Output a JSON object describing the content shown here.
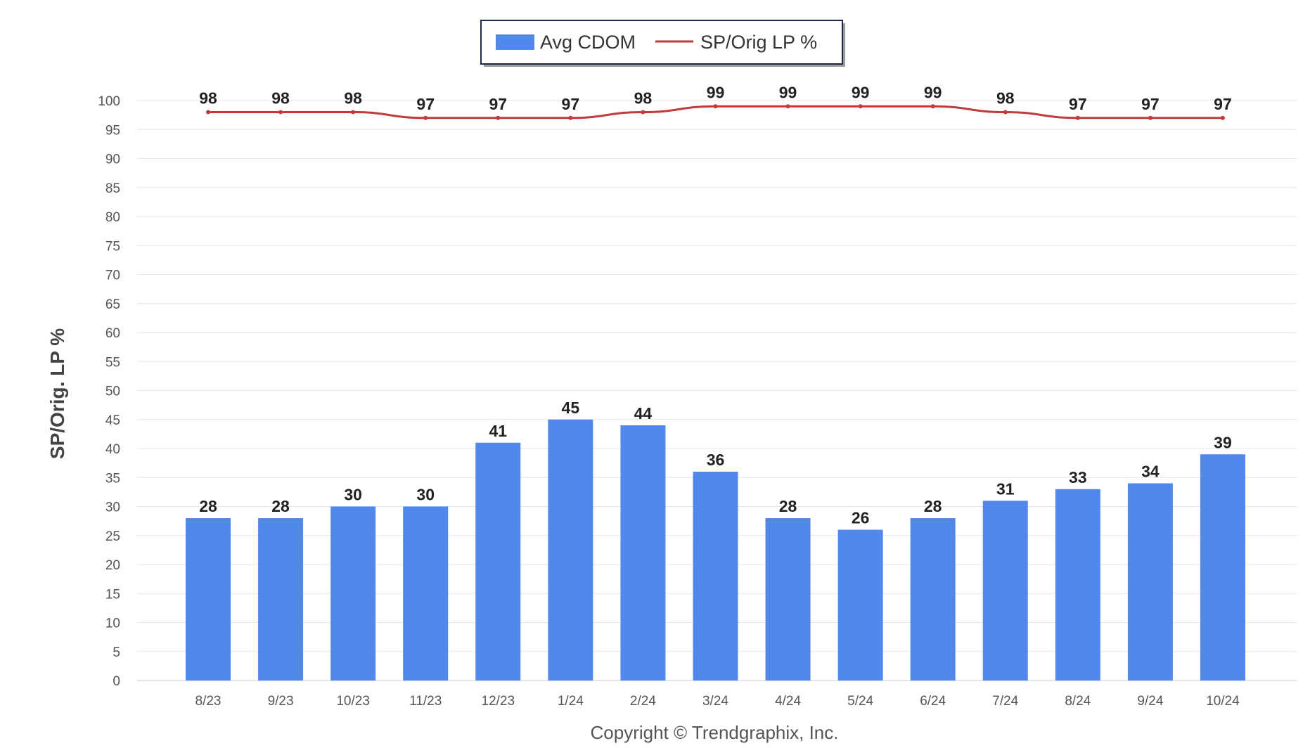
{
  "chart_data": {
    "type": "bar",
    "categories": [
      "8/23",
      "9/23",
      "10/23",
      "11/23",
      "12/23",
      "1/24",
      "2/24",
      "3/24",
      "4/24",
      "5/24",
      "6/24",
      "7/24",
      "8/24",
      "9/24",
      "10/24"
    ],
    "series": [
      {
        "name": "Avg CDOM",
        "type": "bar",
        "color": "#5287ec",
        "values": [
          28,
          28,
          30,
          30,
          41,
          45,
          44,
          36,
          28,
          26,
          28,
          31,
          33,
          34,
          39
        ]
      },
      {
        "name": "SP/Orig LP %",
        "type": "line",
        "color": "#c23a3a",
        "values": [
          98,
          98,
          98,
          97,
          97,
          97,
          98,
          99,
          99,
          99,
          99,
          98,
          97,
          97,
          97
        ]
      }
    ],
    "ylabel": "SP/Orig. LP %",
    "ylim": [
      0,
      100
    ],
    "yticks": [
      0,
      5,
      10,
      15,
      20,
      25,
      30,
      35,
      40,
      45,
      50,
      55,
      60,
      65,
      70,
      75,
      80,
      85,
      90,
      95,
      100
    ],
    "grid": true,
    "legend_position": "top-center",
    "copyright": "Copyright © Trendgraphix, Inc."
  }
}
